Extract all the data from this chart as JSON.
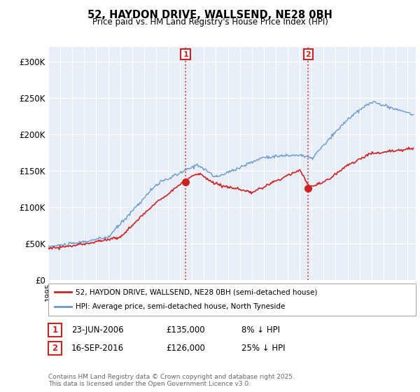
{
  "title": "52, HAYDON DRIVE, WALLSEND, NE28 0BH",
  "subtitle": "Price paid vs. HM Land Registry's House Price Index (HPI)",
  "ylim": [
    0,
    320000
  ],
  "yticks": [
    0,
    50000,
    100000,
    150000,
    200000,
    250000,
    300000
  ],
  "ytick_labels": [
    "£0",
    "£50K",
    "£100K",
    "£150K",
    "£200K",
    "£250K",
    "£300K"
  ],
  "background_color": "#ffffff",
  "plot_bg_color": "#e8eef8",
  "grid_color": "#ffffff",
  "line_color_red": "#cc2222",
  "line_color_blue": "#6699cc",
  "t1_year": 2006.47,
  "t1_price": 135000,
  "t2_year": 2016.71,
  "t2_price": 126000,
  "legend_label1": "52, HAYDON DRIVE, WALLSEND, NE28 0BH (semi-detached house)",
  "legend_label2": "HPI: Average price, semi-detached house, North Tyneside",
  "table_row1": [
    "1",
    "23-JUN-2006",
    "£135,000",
    "8% ↓ HPI"
  ],
  "table_row2": [
    "2",
    "16-SEP-2016",
    "£126,000",
    "25% ↓ HPI"
  ],
  "footer": "Contains HM Land Registry data © Crown copyright and database right 2025.\nThis data is licensed under the Open Government Licence v3.0."
}
